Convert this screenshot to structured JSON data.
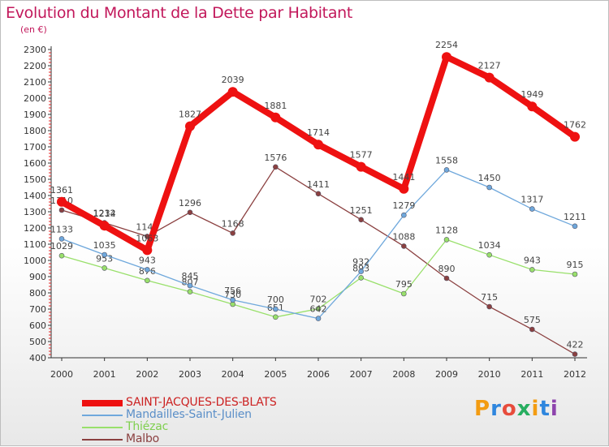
{
  "title": "Evolution du Montant de la Dette par Habitant",
  "subtitle": "(en €)",
  "brand": "Proxiti",
  "brand_colors": [
    "#f39c12",
    "#2e86de",
    "#e74c3c",
    "#27ae60",
    "#f39c12",
    "#2e86de",
    "#8e44ad"
  ],
  "chart_data": {
    "type": "line",
    "x": [
      "2000",
      "2001",
      "2002",
      "2003",
      "2004",
      "2005",
      "2006",
      "2007",
      "2008",
      "2009",
      "2010",
      "2011",
      "2012"
    ],
    "ylim": [
      400,
      2300
    ],
    "yticks": [
      400,
      500,
      600,
      700,
      800,
      900,
      1000,
      1100,
      1200,
      1300,
      1400,
      1500,
      1600,
      1700,
      1800,
      1900,
      2000,
      2100,
      2200,
      2300
    ],
    "grid": false,
    "legend_position": "bottom-left",
    "series": [
      {
        "name": "SAINT-JACQUES-DES-BLATS",
        "color": "#ee1111",
        "values": [
          1361,
          1214,
          1063,
          1827,
          2039,
          1881,
          1714,
          1577,
          1441,
          2254,
          2127,
          1949,
          1762
        ]
      },
      {
        "name": "Mandailles-Saint-Julien",
        "color": "#6fa8dc",
        "values": [
          1133,
          1035,
          943,
          845,
          756,
          700,
          642,
          932,
          1279,
          1558,
          1450,
          1317,
          1211
        ]
      },
      {
        "name": "Thiézac",
        "color": "#99e06b",
        "values": [
          1029,
          953,
          876,
          807,
          730,
          651,
          702,
          893,
          795,
          1128,
          1034,
          943,
          915
        ]
      },
      {
        "name": "Malbo",
        "color": "#8b4040",
        "values": [
          1310,
          1232,
          1148,
          1296,
          1168,
          1576,
          1411,
          1251,
          1088,
          890,
          715,
          575,
          422
        ]
      }
    ]
  }
}
